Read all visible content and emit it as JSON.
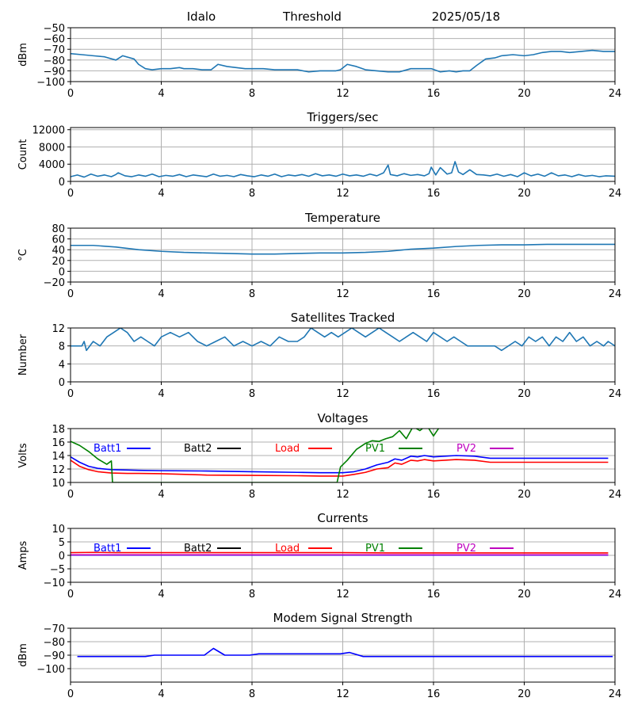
{
  "header": {
    "station": "Idalo",
    "label": "Threshold",
    "date": "2025/05/18"
  },
  "chart_data": [
    {
      "id": "threshold",
      "type": "line",
      "title": "",
      "xlabel": "",
      "ylabel": "dBm",
      "xlim": [
        0,
        24
      ],
      "ylim": [
        -100,
        -50
      ],
      "xticks": [
        0,
        4,
        8,
        12,
        16,
        20,
        24
      ],
      "yticks": [
        -100,
        -90,
        -80,
        -70,
        -60,
        -50
      ],
      "grid": true,
      "series": [
        {
          "color": "#1f77b4",
          "x": [
            0,
            0.5,
            1,
            1.5,
            2,
            2.3,
            2.8,
            3.0,
            3.3,
            3.6,
            4,
            4.4,
            4.8,
            5,
            5.4,
            5.8,
            6.2,
            6.5,
            6.9,
            7.3,
            7.7,
            8,
            8.5,
            9,
            9.5,
            10,
            10.5,
            11,
            11.4,
            11.7,
            11.9,
            12.2,
            12.6,
            13,
            13.5,
            14,
            14.5,
            15,
            15.5,
            15.9,
            16.3,
            16.7,
            17,
            17.3,
            17.6,
            17.9,
            18.3,
            18.7,
            19,
            19.5,
            20,
            20.4,
            20.8,
            21.2,
            21.6,
            22,
            22.5,
            23,
            23.5,
            24
          ],
          "y": [
            -74,
            -75,
            -76,
            -77,
            -80,
            -76,
            -79,
            -84,
            -88,
            -89,
            -88,
            -88,
            -87,
            -88,
            -88,
            -89,
            -89,
            -84,
            -86,
            -87,
            -88,
            -88,
            -88,
            -89,
            -89,
            -89,
            -91,
            -90,
            -90,
            -90,
            -89,
            -84,
            -86,
            -89,
            -90,
            -91,
            -91,
            -88,
            -88,
            -88,
            -91,
            -90,
            -91,
            -90,
            -90,
            -85,
            -79,
            -78,
            -76,
            -75,
            -76,
            -75,
            -73,
            -72,
            -72,
            -73,
            -72,
            -71,
            -72,
            -72
          ]
        }
      ]
    },
    {
      "id": "triggers",
      "type": "line",
      "title": "Triggers/sec",
      "xlabel": "",
      "ylabel": "Count",
      "xlim": [
        0,
        24
      ],
      "ylim": [
        0,
        12500
      ],
      "xticks": [
        0,
        4,
        8,
        12,
        16,
        20,
        24
      ],
      "yticks": [
        0,
        4000,
        8000,
        12000
      ],
      "grid": true,
      "series": [
        {
          "color": "#1f77b4",
          "x": [
            0,
            0.3,
            0.6,
            0.9,
            1.2,
            1.5,
            1.8,
            2.0,
            2.1,
            2.4,
            2.7,
            3.0,
            3.3,
            3.6,
            3.9,
            4.2,
            4.5,
            4.8,
            5.1,
            5.4,
            5.7,
            6.0,
            6.3,
            6.6,
            6.9,
            7.2,
            7.5,
            7.8,
            8.1,
            8.4,
            8.7,
            9.0,
            9.3,
            9.6,
            9.9,
            10.2,
            10.5,
            10.8,
            11.1,
            11.4,
            11.7,
            12.0,
            12.3,
            12.6,
            12.9,
            13.2,
            13.5,
            13.8,
            14.0,
            14.1,
            14.4,
            14.7,
            15.0,
            15.3,
            15.6,
            15.8,
            15.9,
            16.1,
            16.3,
            16.6,
            16.8,
            16.95,
            17.1,
            17.3,
            17.6,
            17.9,
            18.2,
            18.5,
            18.8,
            19.1,
            19.4,
            19.7,
            20.0,
            20.3,
            20.6,
            20.9,
            21.2,
            21.5,
            21.8,
            22.1,
            22.4,
            22.7,
            23.0,
            23.3,
            23.6,
            24
          ],
          "y": [
            1100,
            1500,
            1000,
            1700,
            1200,
            1500,
            1100,
            1600,
            2000,
            1300,
            1100,
            1500,
            1200,
            1700,
            1100,
            1400,
            1200,
            1600,
            1100,
            1500,
            1300,
            1100,
            1700,
            1200,
            1400,
            1100,
            1600,
            1300,
            1100,
            1500,
            1200,
            1700,
            1100,
            1500,
            1300,
            1600,
            1200,
            1800,
            1300,
            1500,
            1200,
            1700,
            1300,
            1500,
            1200,
            1700,
            1300,
            2000,
            3800,
            1600,
            1300,
            1800,
            1400,
            1600,
            1300,
            1800,
            3300,
            1500,
            3200,
            1700,
            2000,
            4600,
            2200,
            1600,
            2700,
            1600,
            1500,
            1300,
            1700,
            1200,
            1600,
            1100,
            2000,
            1300,
            1700,
            1200,
            2000,
            1300,
            1500,
            1100,
            1600,
            1200,
            1400,
            1100,
            1300,
            1200
          ]
        }
      ]
    },
    {
      "id": "temperature",
      "type": "line",
      "title": "Temperature",
      "xlabel": "",
      "ylabel": "°C",
      "xlim": [
        0,
        24
      ],
      "ylim": [
        -20,
        80
      ],
      "xticks": [
        0,
        4,
        8,
        12,
        16,
        20,
        24
      ],
      "yticks": [
        -20,
        0,
        20,
        40,
        60,
        80
      ],
      "grid": true,
      "series": [
        {
          "color": "#1f77b4",
          "x": [
            0,
            1,
            2,
            3,
            4,
            5,
            6,
            7,
            8,
            9,
            10,
            11,
            12,
            13,
            14,
            15,
            16,
            17,
            18,
            19,
            20,
            21,
            22,
            23,
            24
          ],
          "y": [
            48,
            48,
            45,
            40,
            37,
            35,
            34,
            33,
            32,
            32,
            33,
            34,
            34,
            35,
            37,
            41,
            43,
            46,
            48,
            49,
            49,
            50,
            50,
            50,
            50
          ]
        }
      ]
    },
    {
      "id": "satellites",
      "type": "line",
      "title": "Satellites Tracked",
      "xlabel": "",
      "ylabel": "Number",
      "xlim": [
        0,
        24
      ],
      "ylim": [
        0,
        12
      ],
      "xticks": [
        0,
        4,
        8,
        12,
        16,
        20,
        24
      ],
      "yticks": [
        0,
        4,
        8,
        12
      ],
      "grid": true,
      "series": [
        {
          "color": "#1f77b4",
          "x": [
            0,
            0.5,
            0.6,
            0.7,
            1.0,
            1.3,
            1.6,
            1.9,
            2.2,
            2.5,
            2.8,
            3.1,
            3.4,
            3.7,
            4.0,
            4.4,
            4.8,
            5.2,
            5.6,
            6.0,
            6.4,
            6.8,
            7.2,
            7.6,
            8.0,
            8.4,
            8.8,
            9.2,
            9.6,
            10.0,
            10.3,
            10.6,
            10.9,
            11.2,
            11.5,
            11.8,
            12.1,
            12.4,
            12.7,
            13.0,
            13.3,
            13.6,
            13.9,
            14.2,
            14.5,
            14.8,
            15.1,
            15.4,
            15.7,
            16.0,
            16.3,
            16.6,
            16.9,
            17.2,
            17.5,
            17.8,
            18.1,
            18.4,
            18.7,
            19.0,
            19.3,
            19.6,
            19.9,
            20.2,
            20.5,
            20.8,
            21.1,
            21.4,
            21.7,
            22.0,
            22.3,
            22.6,
            22.9,
            23.2,
            23.5,
            23.7,
            24
          ],
          "y": [
            8,
            8,
            9,
            7,
            9,
            8,
            10,
            11,
            12,
            11,
            9,
            10,
            9,
            8,
            10,
            11,
            10,
            11,
            9,
            8,
            9,
            10,
            8,
            9,
            8,
            9,
            8,
            10,
            9,
            9,
            10,
            12,
            11,
            10,
            11,
            10,
            11,
            12,
            11,
            10,
            11,
            12,
            11,
            10,
            9,
            10,
            11,
            10,
            9,
            11,
            10,
            9,
            10,
            9,
            8,
            8,
            8,
            8,
            8,
            7,
            8,
            9,
            8,
            10,
            9,
            10,
            8,
            10,
            9,
            11,
            9,
            10,
            8,
            9,
            8,
            9,
            8
          ]
        }
      ]
    },
    {
      "id": "voltages",
      "type": "line",
      "title": "Voltages",
      "xlabel": "",
      "ylabel": "Volts",
      "xlim": [
        0,
        24
      ],
      "ylim": [
        10,
        18
      ],
      "xticks": [
        0,
        4,
        8,
        12,
        16,
        20,
        24
      ],
      "yticks": [
        10,
        12,
        14,
        16,
        18
      ],
      "grid": true,
      "legend": "top, single row",
      "series": [
        {
          "name": "Batt1",
          "color": "#0000ff",
          "x": [
            0,
            0.4,
            0.8,
            1.2,
            1.8,
            2.5,
            3,
            4,
            6,
            8,
            10,
            11,
            12,
            12.5,
            13,
            13.5,
            14,
            14.3,
            14.6,
            15,
            15.3,
            15.6,
            16,
            17,
            17.8,
            18.5,
            20,
            22,
            23.7
          ],
          "y": [
            13.8,
            13.0,
            12.4,
            12.1,
            11.9,
            11.85,
            11.8,
            11.75,
            11.7,
            11.6,
            11.5,
            11.45,
            11.45,
            11.6,
            12.0,
            12.6,
            13.0,
            13.5,
            13.3,
            13.9,
            13.8,
            14.0,
            13.8,
            14.0,
            13.9,
            13.6,
            13.6,
            13.6,
            13.6
          ]
        },
        {
          "name": "Load",
          "color": "#ff0000",
          "x": [
            0,
            0.4,
            0.8,
            1.2,
            1.8,
            2.5,
            3,
            4,
            6,
            8,
            10,
            11,
            12,
            12.5,
            13,
            13.5,
            14,
            14.3,
            14.6,
            15,
            15.3,
            15.6,
            16,
            17,
            17.8,
            18.5,
            20,
            22,
            23.7
          ],
          "y": [
            13.3,
            12.4,
            11.9,
            11.6,
            11.4,
            11.35,
            11.35,
            11.3,
            11.1,
            11.05,
            11.0,
            10.95,
            10.95,
            11.2,
            11.5,
            12.0,
            12.2,
            12.9,
            12.7,
            13.3,
            13.2,
            13.4,
            13.2,
            13.4,
            13.3,
            13.0,
            13.0,
            13.0,
            13.0
          ]
        },
        {
          "name": "PV1",
          "color": "#008000",
          "x": [
            0,
            0.4,
            0.8,
            1.2,
            1.6,
            1.8,
            1.85,
            11.75,
            11.9,
            12.2,
            12.6,
            13.0,
            13.3,
            13.6,
            13.9,
            14.2,
            14.5,
            14.8,
            15.1,
            15.4,
            15.7,
            16.0,
            16.3
          ],
          "y": [
            16.1,
            15.5,
            14.6,
            13.5,
            12.7,
            13.2,
            10.0,
            10.0,
            12.3,
            13.3,
            14.9,
            15.8,
            16.2,
            16.1,
            16.5,
            16.8,
            17.7,
            16.5,
            18.3,
            17.7,
            18.5,
            16.9,
            18.4
          ]
        },
        {
          "name": "Batt2",
          "color": "#000000",
          "x": [],
          "y": []
        },
        {
          "name": "PV2",
          "color": "#bf00bf",
          "x": [],
          "y": []
        }
      ]
    },
    {
      "id": "currents",
      "type": "line",
      "title": "Currents",
      "xlabel": "",
      "ylabel": "Amps",
      "xlim": [
        0,
        24
      ],
      "ylim": [
        -10,
        10
      ],
      "xticks": [
        0,
        4,
        8,
        12,
        16,
        20,
        24
      ],
      "yticks": [
        -10,
        -5,
        0,
        5,
        10
      ],
      "grid": true,
      "legend": "top, single row",
      "series": [
        {
          "name": "Load",
          "color": "#ff0000",
          "x": [
            0,
            1,
            2,
            3,
            4,
            6,
            8,
            10,
            12,
            14,
            16,
            18,
            20,
            22,
            23.7
          ],
          "y": [
            1.0,
            1.1,
            1.0,
            1.0,
            1.0,
            1.0,
            1.0,
            1.0,
            1.0,
            0.9,
            0.9,
            0.9,
            0.9,
            0.9,
            0.9
          ]
        },
        {
          "name": "Batt1",
          "color": "#0000ff",
          "x": [
            0,
            4,
            8,
            12,
            16,
            20,
            23.7
          ],
          "y": [
            0.1,
            0.1,
            0.1,
            0.1,
            0.1,
            0.1,
            0.1
          ]
        },
        {
          "name": "PV2",
          "color": "#bf00bf",
          "x": [
            0,
            4,
            8,
            12,
            16,
            20,
            23.7
          ],
          "y": [
            0.2,
            0.2,
            0.2,
            0.2,
            0.2,
            0.2,
            0.2
          ]
        },
        {
          "name": "Batt2",
          "color": "#000000",
          "x": [],
          "y": []
        },
        {
          "name": "PV1",
          "color": "#008000",
          "x": [],
          "y": []
        }
      ]
    },
    {
      "id": "modem",
      "type": "line",
      "title": "Modem Signal Strength",
      "xlabel": "",
      "ylabel": "dBm",
      "xlim": [
        0,
        24
      ],
      "ylim": [
        -110,
        -70
      ],
      "xticks": [
        0,
        4,
        8,
        12,
        16,
        20,
        24
      ],
      "yticks": [
        -100,
        -90,
        -80,
        -70
      ],
      "grid": true,
      "series": [
        {
          "color": "#0000ff",
          "x": [
            0.3,
            1,
            2,
            3,
            3.3,
            3.7,
            4,
            5,
            5.9,
            6.3,
            6.8,
            7.3,
            7.9,
            8.3,
            9,
            10,
            11,
            11.9,
            12.3,
            12.9,
            14,
            16,
            18,
            20,
            22,
            23.9
          ],
          "y": [
            -91,
            -91,
            -91,
            -91,
            -91,
            -90,
            -90,
            -90,
            -90,
            -85,
            -90,
            -90,
            -90,
            -89,
            -89,
            -89,
            -89,
            -89,
            -88,
            -91,
            -91,
            -91,
            -91,
            -91,
            -91,
            -91
          ]
        }
      ]
    }
  ]
}
